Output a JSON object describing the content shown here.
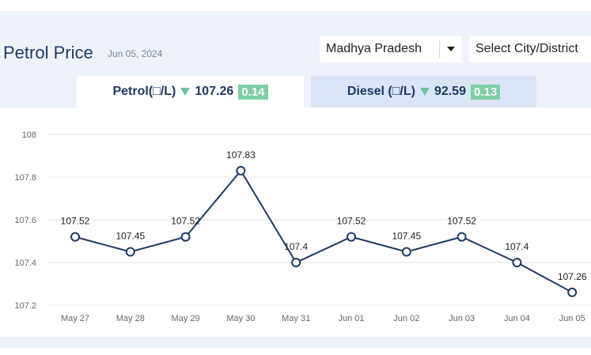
{
  "header": {
    "title": "Petrol Price",
    "date": "Jun 05, 2024",
    "state_select": "Madhya Pradesh",
    "city_select": "Select City/District"
  },
  "tabs": [
    {
      "label": "Petrol(□/L)",
      "price": "107.26",
      "change": "0.14",
      "trend": "down",
      "active": true
    },
    {
      "label": "Diesel (□/L)",
      "price": "92.59",
      "change": "0.13",
      "trend": "down",
      "active": false
    }
  ],
  "colors": {
    "line": "#1f3a63",
    "badge": "#7ccfa4",
    "trend_down": "#6cc29a",
    "panel_bg": "#eef2fb"
  },
  "chart_data": {
    "type": "line",
    "categories": [
      "May 27",
      "May 28",
      "May 29",
      "May 30",
      "May 31",
      "Jun 01",
      "Jun 02",
      "Jun 03",
      "Jun 04",
      "Jun 05"
    ],
    "values": [
      107.52,
      107.45,
      107.52,
      107.83,
      107.4,
      107.52,
      107.45,
      107.52,
      107.4,
      107.26
    ],
    "data_labels": [
      "107.52",
      "107.45",
      "107.52",
      "107.83",
      "107.4",
      "107.52",
      "107.45",
      "107.52",
      "107.4",
      "107.26"
    ],
    "y_ticks": [
      107.2,
      107.4,
      107.6,
      107.8,
      108
    ],
    "y_tick_labels": [
      "107.2",
      "107.4",
      "107.6",
      "107.8",
      "108"
    ],
    "ylim": [
      107.2,
      108
    ],
    "grid": true,
    "title": "",
    "xlabel": "",
    "ylabel": ""
  }
}
